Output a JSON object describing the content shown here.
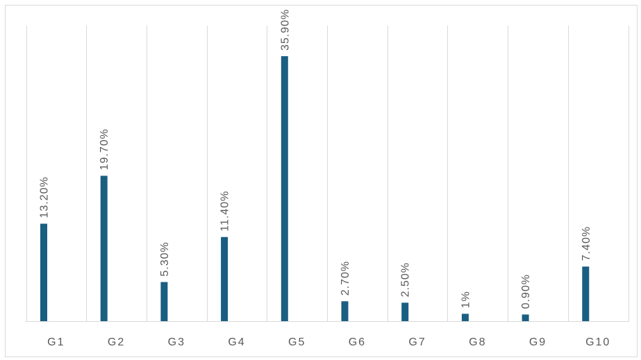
{
  "chart_data": {
    "type": "bar",
    "title": "",
    "xlabel": "",
    "ylabel": "",
    "categories": [
      "G1",
      "G2",
      "G3",
      "G4",
      "G5",
      "G6",
      "G7",
      "G8",
      "G9",
      "G10"
    ],
    "values": [
      13.2,
      19.7,
      5.3,
      11.4,
      35.9,
      2.7,
      2.5,
      1.0,
      0.9,
      7.4
    ],
    "data_labels": [
      "13.20%",
      "19.70%",
      "5.30%",
      "11.40%",
      "35.90%",
      "2.70%",
      "2.50%",
      "1%",
      "0.90%",
      "7.40%"
    ],
    "ylim": [
      0,
      40
    ],
    "grid": "vertical category separators",
    "legend": "none",
    "colors": {
      "bar": "#1a5e82",
      "grid": "#d9d9d9",
      "text": "#595959"
    }
  }
}
